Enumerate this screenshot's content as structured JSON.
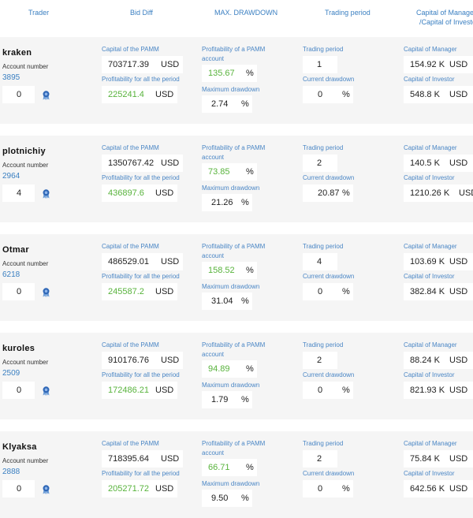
{
  "header": {
    "trader": "Trader",
    "bid_diff": "Bid Diff",
    "max_drawdown": "MAX. DRAWDOWN",
    "trading_period": "Trading period",
    "capital_manager": "Capital of Manager",
    "capital_investor": "/Capital of Investor"
  },
  "labels": {
    "account_number": "Account number",
    "capital_pamm": "Capital of the PAMM",
    "profit_all": "Profitability for all the period",
    "profit_pamm": "Profitability of a PAMM account",
    "max_drawdown": "Maximum drawdown",
    "trading_period": "Trading period",
    "current_drawdown": "Current drawdown",
    "capital_manager": "Capital of Manager",
    "capital_investor": "Capital of Investor",
    "usd": "USD",
    "pct": "%"
  },
  "colors": {
    "accent": "#3a7fc1",
    "positive": "#58b33c",
    "card_bg": "#f5f5f5"
  },
  "badge_icon": "ribbon-badge",
  "traders": [
    {
      "name": "kraken",
      "account": "3895",
      "rank": "0",
      "capital_pamm": "703717.39",
      "profit_all": "225241.4",
      "profit_pamm": "135.67",
      "max_drawdown": "2.74",
      "trading_period": "1",
      "current_drawdown": "0",
      "capital_manager": "154.92 K",
      "capital_investor": "548.8 K"
    },
    {
      "name": "plotnichiy",
      "account": "2964",
      "rank": "4",
      "capital_pamm": "1350767.42",
      "profit_all": "436897.6",
      "profit_pamm": "73.85",
      "max_drawdown": "21.26",
      "trading_period": "2",
      "current_drawdown": "20.87",
      "capital_manager": "140.5 K",
      "capital_investor": "1210.26 K"
    },
    {
      "name": "Otmar",
      "account": "6218",
      "rank": "0",
      "capital_pamm": "486529.01",
      "profit_all": "245587.2",
      "profit_pamm": "158.52",
      "max_drawdown": "31.04",
      "trading_period": "4",
      "current_drawdown": "0",
      "capital_manager": "103.69 K",
      "capital_investor": "382.84 K"
    },
    {
      "name": "kuroles",
      "account": "2509",
      "rank": "0",
      "capital_pamm": "910176.76",
      "profit_all": "172486.21",
      "profit_pamm": "94.89",
      "max_drawdown": "1.79",
      "trading_period": "2",
      "current_drawdown": "0",
      "capital_manager": "88.24 K",
      "capital_investor": "821.93 K"
    },
    {
      "name": "Klyaksa",
      "account": "2888",
      "rank": "0",
      "capital_pamm": "718395.64",
      "profit_all": "205271.72",
      "profit_pamm": "66.71",
      "max_drawdown": "9.50",
      "trading_period": "2",
      "current_drawdown": "0",
      "capital_manager": "75.84 K",
      "capital_investor": "642.56 K"
    }
  ]
}
